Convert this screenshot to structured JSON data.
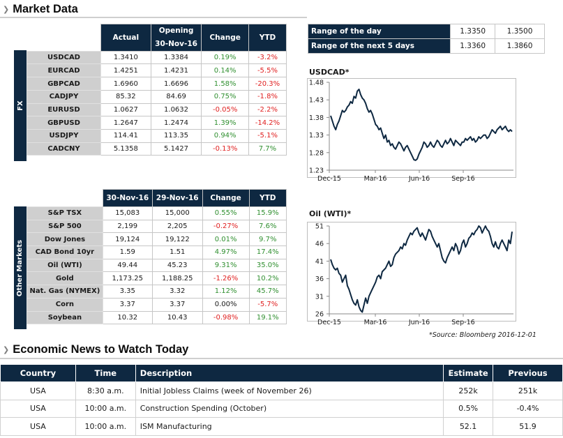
{
  "market_header": "Market Data",
  "news_header": "Economic News to Watch Today",
  "fx": {
    "side_label": "FX",
    "headers": [
      "Actual",
      "Opening\n30-Nov-16",
      "Change",
      "YTD"
    ],
    "rows": [
      {
        "label": "USDCAD",
        "actual": "1.3410",
        "opening": "1.3384",
        "change": "0.19%",
        "ytd": "-3.2%"
      },
      {
        "label": "EURCAD",
        "actual": "1.4251",
        "opening": "1.4231",
        "change": "0.14%",
        "ytd": "-5.5%"
      },
      {
        "label": "GBPCAD",
        "actual": "1.6960",
        "opening": "1.6696",
        "change": "1.58%",
        "ytd": "-20.3%"
      },
      {
        "label": "CADJPY",
        "actual": "85.32",
        "opening": "84.69",
        "change": "0.75%",
        "ytd": "-1.8%"
      },
      {
        "label": "EURUSD",
        "actual": "1.0627",
        "opening": "1.0632",
        "change": "-0.05%",
        "ytd": "-2.2%"
      },
      {
        "label": "GBPUSD",
        "actual": "1.2647",
        "opening": "1.2474",
        "change": "1.39%",
        "ytd": "-14.2%"
      },
      {
        "label": "USDJPY",
        "actual": "114.41",
        "opening": "113.35",
        "change": "0.94%",
        "ytd": "-5.1%"
      },
      {
        "label": "CADCNY",
        "actual": "5.1358",
        "opening": "5.1427",
        "change": "-0.13%",
        "ytd": "7.7%"
      }
    ]
  },
  "other": {
    "side_label": "Other Markets",
    "headers": [
      "30-Nov-16",
      "29-Nov-16",
      "Change",
      "YTD"
    ],
    "rows": [
      {
        "label": "S&P TSX",
        "a": "15,083",
        "b": "15,000",
        "change": "0.55%",
        "ytd": "15.9%"
      },
      {
        "label": "S&P 500",
        "a": "2,199",
        "b": "2,205",
        "change": "-0.27%",
        "ytd": "7.6%"
      },
      {
        "label": "Dow Jones",
        "a": "19,124",
        "b": "19,122",
        "change": "0.01%",
        "ytd": "9.7%"
      },
      {
        "label": "CAD Bond 10yr",
        "a": "1.59",
        "b": "1.51",
        "change": "4.97%",
        "ytd": "17.4%"
      },
      {
        "label": "Oil (WTI)",
        "a": "49.44",
        "b": "45.23",
        "change": "9.31%",
        "ytd": "35.0%"
      },
      {
        "label": "Gold",
        "a": "1,173.25",
        "b": "1,188.25",
        "change": "-1.26%",
        "ytd": "10.2%"
      },
      {
        "label": "Nat. Gas (NYMEX)",
        "a": "3.35",
        "b": "3.32",
        "change": "1.12%",
        "ytd": "45.7%"
      },
      {
        "label": "Corn",
        "a": "3.37",
        "b": "3.37",
        "change": "0.00%",
        "ytd": "-5.7%"
      },
      {
        "label": "Soybean",
        "a": "10.32",
        "b": "10.43",
        "change": "-0.98%",
        "ytd": "19.1%"
      }
    ]
  },
  "range": [
    {
      "label": "Range of the day",
      "low": "1.3350",
      "high": "1.3500"
    },
    {
      "label": "Range of the next 5 days",
      "low": "1.3360",
      "high": "1.3860"
    }
  ],
  "source_note": "*Source: Bloomberg  2016-12-01",
  "chart_data": [
    {
      "type": "line",
      "title": "USDCAD*",
      "x_ticks": [
        "Dec-15",
        "Mar-16",
        "Jun-16",
        "Sep-16"
      ],
      "y_ticks": [
        "1.48",
        "1.43",
        "1.38",
        "1.33",
        "1.28",
        "1.23"
      ],
      "ylim": [
        1.23,
        1.48
      ],
      "series": [
        {
          "values": [
            1.385,
            1.37,
            1.355,
            1.345,
            1.36,
            1.37,
            1.385,
            1.4,
            1.395,
            1.4,
            1.41,
            1.415,
            1.425,
            1.42,
            1.44,
            1.435,
            1.455,
            1.46,
            1.445,
            1.435,
            1.43,
            1.42,
            1.405,
            1.395,
            1.4,
            1.39,
            1.375,
            1.36,
            1.355,
            1.345,
            1.35,
            1.335,
            1.32,
            1.33,
            1.31,
            1.315,
            1.3,
            1.305,
            1.295,
            1.29,
            1.3,
            1.31,
            1.305,
            1.295,
            1.285,
            1.295,
            1.3,
            1.29,
            1.28,
            1.27,
            1.26,
            1.258,
            1.262,
            1.275,
            1.285,
            1.295,
            1.31,
            1.305,
            1.295,
            1.3,
            1.31,
            1.3,
            1.295,
            1.305,
            1.315,
            1.31,
            1.3,
            1.295,
            1.305,
            1.315,
            1.305,
            1.31,
            1.32,
            1.31,
            1.3,
            1.315,
            1.31,
            1.305,
            1.3,
            1.31,
            1.31,
            1.32,
            1.315,
            1.32,
            1.325,
            1.315,
            1.32,
            1.31,
            1.315,
            1.325,
            1.32,
            1.325,
            1.33,
            1.33,
            1.32,
            1.325,
            1.335,
            1.345,
            1.34,
            1.335,
            1.345,
            1.35,
            1.355,
            1.345,
            1.35,
            1.355,
            1.345,
            1.34,
            1.345,
            1.34
          ]
        }
      ]
    },
    {
      "type": "line",
      "title": "Oil (WTI)*",
      "x_ticks": [
        "Dec-15",
        "Mar-16",
        "Jun-16",
        "Sep-16"
      ],
      "y_ticks": [
        "51",
        "46",
        "41",
        "36",
        "31",
        "26"
      ],
      "ylim": [
        26,
        51
      ],
      "series": [
        {
          "values": [
            41.5,
            40,
            39,
            38.5,
            39,
            37.5,
            37,
            35,
            36,
            37,
            34,
            33,
            31.5,
            30,
            29,
            28.5,
            30,
            28,
            27,
            26.5,
            28.5,
            30.5,
            29,
            31,
            32,
            33,
            34,
            35,
            36.5,
            37,
            36,
            38,
            38.5,
            39,
            40,
            41,
            39.5,
            40,
            42,
            43,
            43.5,
            44,
            45,
            44.5,
            46,
            45.5,
            47,
            48,
            49,
            48.5,
            49.5,
            50,
            50.5,
            49,
            48,
            49,
            48,
            47,
            48.5,
            50,
            49.5,
            48,
            47,
            46,
            45,
            46,
            44,
            42,
            41,
            40.5,
            42,
            43,
            44,
            45,
            44,
            46,
            45,
            43,
            44,
            46,
            47,
            45,
            46,
            47.5,
            48,
            49,
            48.5,
            49.5,
            50,
            51,
            50.5,
            49,
            50,
            51,
            50,
            49.5,
            48,
            46,
            45,
            46.5,
            45,
            44.5,
            46,
            47,
            46,
            45,
            44,
            47,
            46,
            49.4
          ]
        }
      ]
    }
  ],
  "news": {
    "headers": [
      "Country",
      "Time",
      "Description",
      "Estimate",
      "Previous"
    ],
    "rows": [
      {
        "country": "USA",
        "time": "8:30 a.m.",
        "desc": "Initial Jobless Claims (week of November 26)",
        "estimate": "252k",
        "previous": "251k"
      },
      {
        "country": "USA",
        "time": "10:00 a.m.",
        "desc": "Construction Spending (October)",
        "estimate": "0.5%",
        "previous": "-0.4%"
      },
      {
        "country": "USA",
        "time": "10:00 a.m.",
        "desc": "ISM Manufacturing",
        "estimate": "52.1",
        "previous": "51.9"
      }
    ]
  }
}
